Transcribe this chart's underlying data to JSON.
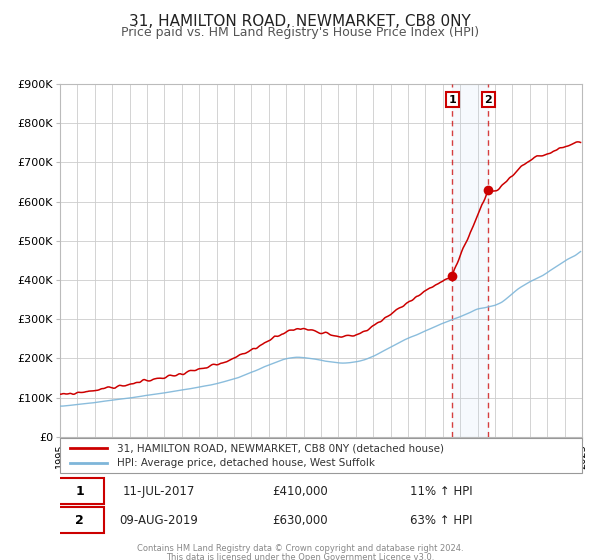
{
  "title": "31, HAMILTON ROAD, NEWMARKET, CB8 0NY",
  "subtitle": "Price paid vs. HM Land Registry's House Price Index (HPI)",
  "title_fontsize": 11,
  "subtitle_fontsize": 9,
  "background_color": "#ffffff",
  "plot_bg_color": "#ffffff",
  "grid_color": "#cccccc",
  "red_line_color": "#cc0000",
  "blue_line_color": "#7eb6d9",
  "sale1_date_num": 2017.54,
  "sale1_price": 410000,
  "sale1_label": "1",
  "sale2_date_num": 2019.62,
  "sale2_price": 630000,
  "sale2_label": "2",
  "xmin": 1995,
  "xmax": 2025,
  "ymin": 0,
  "ymax": 900000,
  "yticks": [
    0,
    100000,
    200000,
    300000,
    400000,
    500000,
    600000,
    700000,
    800000,
    900000
  ],
  "legend1_label": "31, HAMILTON ROAD, NEWMARKET, CB8 0NY (detached house)",
  "legend2_label": "HPI: Average price, detached house, West Suffolk",
  "annot1_date": "11-JUL-2017",
  "annot1_price": "£410,000",
  "annot1_hpi": "11% ↑ HPI",
  "annot2_date": "09-AUG-2019",
  "annot2_price": "£630,000",
  "annot2_hpi": "63% ↑ HPI",
  "footer1": "Contains HM Land Registry data © Crown copyright and database right 2024.",
  "footer2": "This data is licensed under the Open Government Licence v3.0."
}
